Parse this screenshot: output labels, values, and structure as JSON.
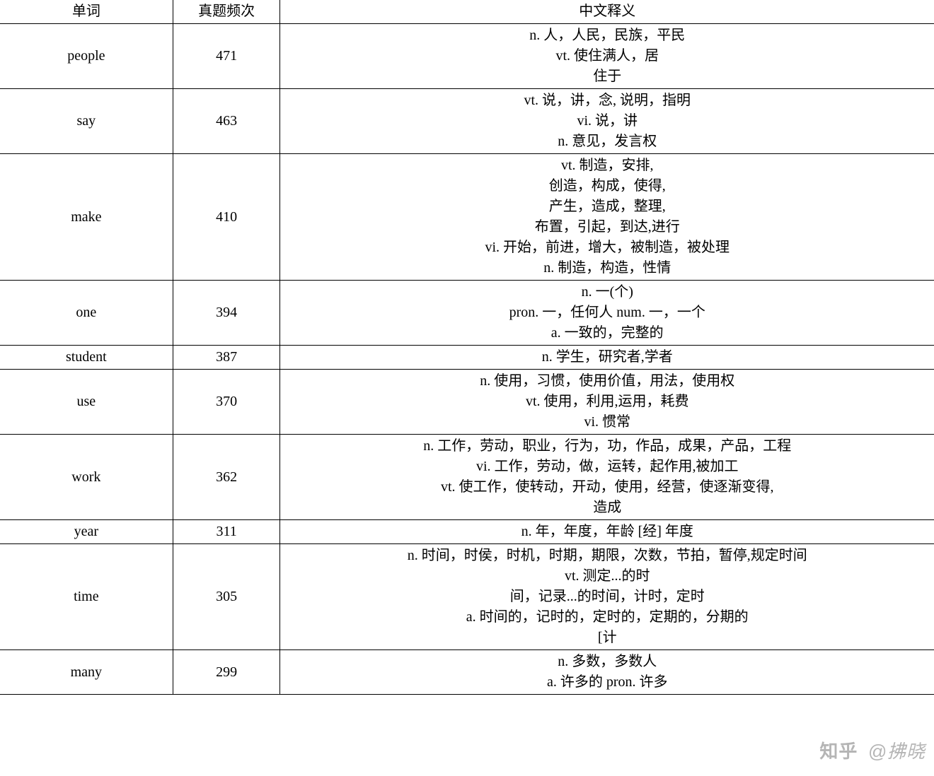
{
  "table": {
    "columns": [
      "单词",
      "真题频次",
      "中文释义"
    ],
    "column_widths_pct": [
      18.5,
      11.5,
      70
    ],
    "border_color": "#000000",
    "background_color": "#ffffff",
    "text_color": "#000000",
    "font_family": "SimSun",
    "font_size_pt": 15,
    "rows": [
      {
        "word": "people",
        "freq": "471",
        "defs": [
          "n. 人，人民，民族，平民",
          "vt. 使住满人，居",
          "住于"
        ]
      },
      {
        "word": "say",
        "freq": "463",
        "defs": [
          "vt. 说，讲，念, 说明，指明",
          "vi. 说，讲",
          "n. 意见，发言权"
        ]
      },
      {
        "word": "make",
        "freq": "410",
        "defs": [
          "vt. 制造，安排,",
          "创造，构成，使得,",
          "产生，造成，整理,",
          "布置，引起，到达,进行",
          "vi. 开始，前进，增大，被制造，被处理",
          "n. 制造，构造，性情"
        ]
      },
      {
        "word": "one",
        "freq": "394",
        "defs": [
          "n. 一(个)",
          "pron. 一，任何人 num. 一，一个",
          "a. 一致的，完整的"
        ]
      },
      {
        "word": "student",
        "freq": "387",
        "defs": [
          "n. 学生，研究者,学者"
        ]
      },
      {
        "word": "use",
        "freq": "370",
        "defs": [
          "n. 使用，习惯，使用价值，用法，使用权",
          "vt. 使用，利用,运用，耗费",
          "vi. 惯常"
        ]
      },
      {
        "word": "work",
        "freq": "362",
        "defs": [
          "n. 工作，劳动，职业，行为，功，作品，成果，产品，工程",
          "vi. 工作，劳动，做，运转，起作用,被加工",
          "vt. 使工作，使转动，开动，使用，经营，使逐渐变得,",
          "造成"
        ]
      },
      {
        "word": "year",
        "freq": "311",
        "defs": [
          "n. 年，年度，年龄 [经] 年度"
        ]
      },
      {
        "word": "time",
        "freq": "305",
        "defs": [
          "n. 时间，时侯，时机，时期，期限，次数，节拍，暂停,规定时间",
          "vt. 测定...的时",
          "间，记录...的时间，计时，定时",
          "a. 时间的，记时的，定时的，定期的，分期的",
          "[计"
        ]
      },
      {
        "word": "many",
        "freq": "299",
        "defs": [
          "n. 多数，多数人",
          "a. 许多的 pron. 许多"
        ]
      }
    ]
  },
  "watermark": {
    "logo": "知乎",
    "handle": "@拂晓",
    "color": "rgba(120,120,120,0.55)",
    "font_size_pt": 20
  }
}
